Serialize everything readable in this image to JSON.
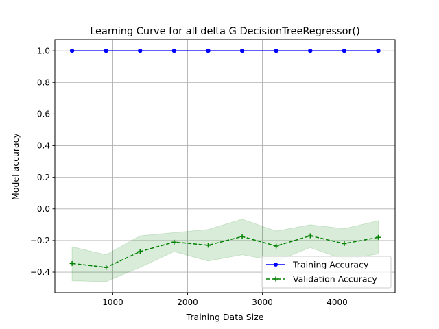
{
  "chart_data": {
    "type": "line",
    "title": "Learning Curve for all delta G DecisionTreeRegressor()",
    "xlabel": "Training Data Size",
    "ylabel": "Model accuracy",
    "xlim": [
      225,
      4775
    ],
    "ylim": [
      -0.53,
      1.07
    ],
    "xticks": [
      1000,
      2000,
      3000,
      4000
    ],
    "yticks": [
      1.0,
      0.8,
      0.6,
      0.4,
      0.2,
      0.0,
      -0.2,
      -0.4
    ],
    "ytick_labels": [
      "1.0",
      "0.8",
      "0.6",
      "0.4",
      "0.2",
      "0.0",
      "−0.2",
      "−0.4"
    ],
    "grid": true,
    "legend_position": "lower-right",
    "x": [
      455,
      910,
      1365,
      1820,
      2275,
      2730,
      3185,
      3640,
      4095,
      4550
    ],
    "series": [
      {
        "name": "Training Accuracy",
        "color": "#0000ff",
        "linestyle": "solid",
        "marker": "circle",
        "values": [
          1.0,
          1.0,
          1.0,
          1.0,
          1.0,
          1.0,
          1.0,
          1.0,
          1.0,
          1.0
        ]
      },
      {
        "name": "Validation Accuracy",
        "color": "#008000",
        "linestyle": "dashed",
        "marker": "plus",
        "values": [
          -0.345,
          -0.37,
          -0.27,
          -0.21,
          -0.23,
          -0.175,
          -0.235,
          -0.17,
          -0.22,
          -0.18
        ],
        "band_lower": [
          -0.455,
          -0.46,
          -0.37,
          -0.27,
          -0.33,
          -0.29,
          -0.33,
          -0.245,
          -0.32,
          -0.285
        ],
        "band_upper": [
          -0.24,
          -0.29,
          -0.17,
          -0.15,
          -0.13,
          -0.065,
          -0.14,
          -0.1,
          -0.125,
          -0.075
        ],
        "band_color": "#008000"
      }
    ]
  }
}
